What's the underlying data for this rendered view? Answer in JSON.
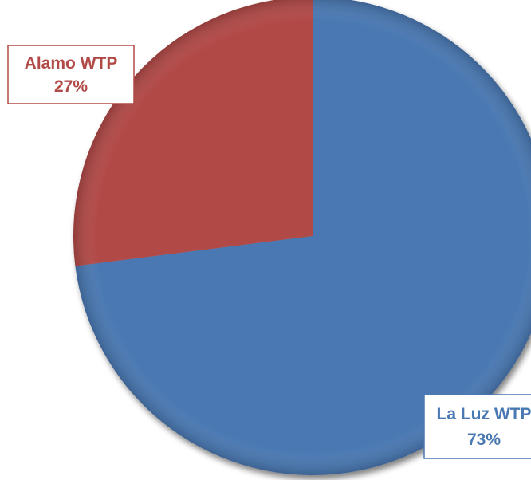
{
  "chart_data": {
    "type": "pie",
    "categories": [
      "La Luz WTP",
      "Alamo WTP"
    ],
    "values": [
      73,
      27
    ],
    "value_labels": [
      "73%",
      "27%"
    ],
    "colors": [
      "#4a78b2",
      "#b14a46"
    ]
  }
}
